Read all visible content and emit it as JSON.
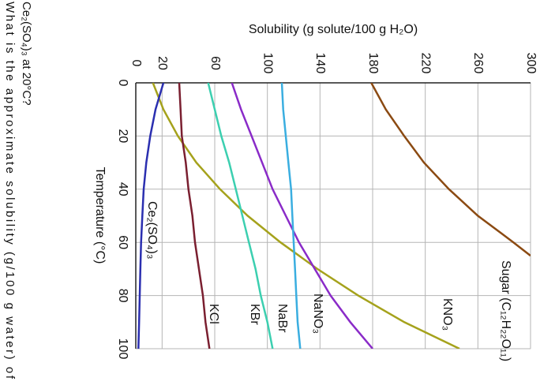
{
  "chart_data": {
    "type": "line",
    "question": [
      "What is the approximate solubility (g/100 g water) of",
      "Ce₂(SO₄)₃ at 20°C?"
    ],
    "xlabel": "Temperature (°C)",
    "ylabel": "Solubility (g solute/100 g H₂O)",
    "xlim": [
      0,
      100
    ],
    "xticks": [
      0,
      20,
      40,
      60,
      80,
      100
    ],
    "ylim": [
      0,
      300
    ],
    "yticks": [
      0,
      20,
      60,
      100,
      140,
      180,
      220,
      260,
      300
    ],
    "grid": true,
    "series": [
      {
        "name": "Sugar (C₁₂H₂₂O₁₁)",
        "color": "#8b4a12",
        "x": [
          0,
          10,
          20,
          30,
          40,
          50,
          60,
          65
        ],
        "values": [
          179,
          190,
          204,
          219,
          238,
          260,
          287,
          300
        ]
      },
      {
        "name": "KNO₃",
        "color": "#a5a21c",
        "x": [
          0,
          10,
          20,
          30,
          40,
          50,
          60,
          70,
          80,
          90,
          100
        ],
        "values": [
          13,
          21,
          32,
          46,
          64,
          85,
          110,
          138,
          169,
          204,
          246
        ]
      },
      {
        "name": "NaNO₃",
        "color": "#8a2bc8",
        "x": [
          0,
          10,
          20,
          30,
          40,
          50,
          60,
          70,
          80,
          90,
          100
        ],
        "values": [
          73,
          80,
          88,
          96,
          104,
          114,
          124,
          136,
          148,
          163,
          180
        ]
      },
      {
        "name": "NaBr",
        "color": "#3aaee0",
        "x": [
          0,
          10,
          20,
          30,
          40,
          50,
          60,
          70,
          80,
          90,
          100
        ],
        "values": [
          111,
          112,
          114,
          116,
          118,
          119,
          120,
          121,
          122,
          123,
          125
        ]
      },
      {
        "name": "KBr",
        "color": "#3ccfb0",
        "x": [
          0,
          10,
          20,
          30,
          40,
          50,
          60,
          70,
          80,
          90,
          100
        ],
        "values": [
          55,
          60,
          65,
          71,
          76,
          81,
          86,
          91,
          95,
          100,
          104
        ]
      },
      {
        "name": "KCl",
        "color": "#7a1f30",
        "x": [
          0,
          10,
          20,
          30,
          40,
          50,
          60,
          70,
          80,
          90,
          100
        ],
        "values": [
          33,
          34,
          35,
          38,
          40,
          43,
          45,
          48,
          51,
          53,
          56
        ]
      },
      {
        "name": "Ce₂(SO₄)₃",
        "color": "#2b2fb0",
        "x": [
          0,
          10,
          20,
          30,
          40,
          50,
          60,
          70,
          80,
          90,
          100
        ],
        "values": [
          21,
          15,
          11,
          8,
          6,
          5,
          4,
          3.5,
          3,
          2.5,
          2
        ]
      }
    ]
  }
}
